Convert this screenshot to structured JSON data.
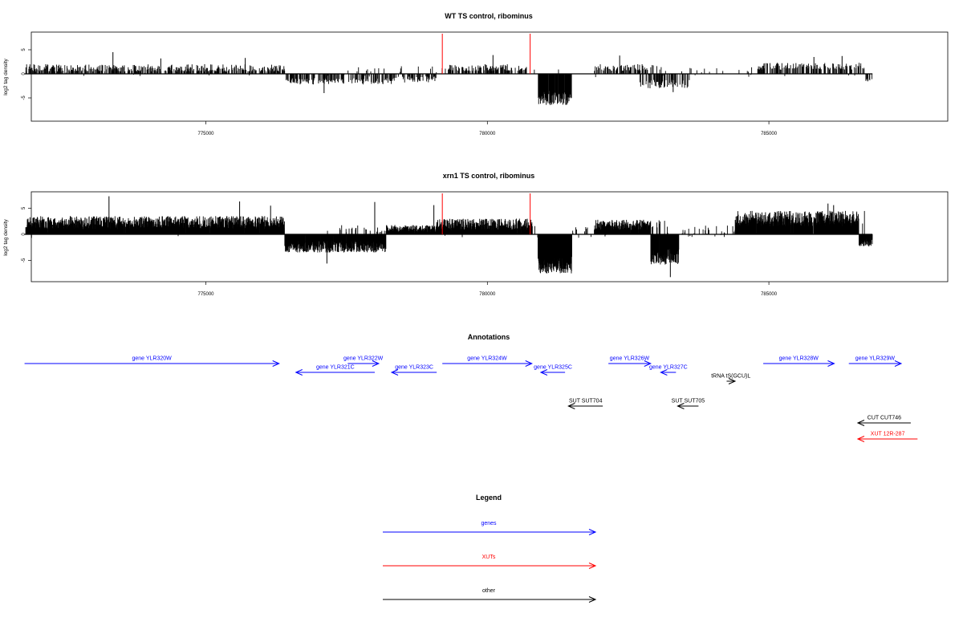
{
  "panels": [
    {
      "id": "wt",
      "title": "WT TS control, ribominus",
      "ylabel": "log2 tag density",
      "yticks": [
        {
          "value": 5,
          "label": "5"
        },
        {
          "value": 0,
          "label": "0"
        },
        {
          "value": -5,
          "label": "-5"
        }
      ],
      "xticks": [
        {
          "value": 775000,
          "label": "775000"
        },
        {
          "value": 780000,
          "label": "780000"
        },
        {
          "value": 785000,
          "label": "785000"
        }
      ],
      "red_markers": [
        779200,
        780760
      ]
    },
    {
      "id": "xrn1",
      "title": "xrn1 TS control, ribominus",
      "ylabel": "log2 tag density",
      "yticks": [
        {
          "value": 5,
          "label": "5"
        },
        {
          "value": 0,
          "label": "0"
        },
        {
          "value": -5,
          "label": "-5"
        }
      ],
      "xticks": [
        {
          "value": 775000,
          "label": "775000"
        },
        {
          "value": 780000,
          "label": "780000"
        },
        {
          "value": 785000,
          "label": "785000"
        }
      ],
      "red_markers": [
        779200,
        780760
      ]
    }
  ],
  "annotations": {
    "title": "Annotations",
    "features": [
      {
        "label": "gene YLR320W",
        "type": "gene",
        "strand": "+",
        "start": 771780,
        "end": 776300,
        "row": 0
      },
      {
        "label": "gene YLR321C",
        "type": "gene",
        "strand": "-",
        "start": 776600,
        "end": 778000,
        "row": 1
      },
      {
        "label": "gene YLR322W",
        "type": "gene",
        "strand": "+",
        "start": 777520,
        "end": 778070,
        "row": 0
      },
      {
        "label": "gene YLR323C",
        "type": "gene",
        "strand": "-",
        "start": 778300,
        "end": 779100,
        "row": 1
      },
      {
        "label": "gene YLR324W",
        "type": "gene",
        "strand": "+",
        "start": 779200,
        "end": 780790,
        "row": 0
      },
      {
        "label": "gene YLR325C",
        "type": "gene",
        "strand": "-",
        "start": 780950,
        "end": 781380,
        "row": 1
      },
      {
        "label": "gene YLR326W",
        "type": "gene",
        "strand": "+",
        "start": 782150,
        "end": 782900,
        "row": 0
      },
      {
        "label": "gene YLR327C",
        "type": "gene",
        "strand": "-",
        "start": 783080,
        "end": 783350,
        "row": 1
      },
      {
        "label": "tRNA tS(GCU)L",
        "type": "other",
        "strand": "+",
        "start": 784250,
        "end": 784400,
        "row": 2
      },
      {
        "label": "gene YLR328W",
        "type": "gene",
        "strand": "+",
        "start": 784900,
        "end": 786160,
        "row": 0
      },
      {
        "label": "gene YLR329W",
        "type": "gene",
        "strand": "+",
        "start": 786420,
        "end": 787350,
        "row": 0
      },
      {
        "label": "SUT SUT704",
        "type": "other",
        "strand": "-",
        "start": 781440,
        "end": 782050,
        "row": 4
      },
      {
        "label": "SUT SUT705",
        "type": "other",
        "strand": "-",
        "start": 783380,
        "end": 783750,
        "row": 4
      },
      {
        "label": "CUT CUT746",
        "type": "other",
        "strand": "-",
        "start": 786580,
        "end": 787520,
        "row": 6
      },
      {
        "label": "XUT 12R-287",
        "type": "xut",
        "strand": "-",
        "start": 786580,
        "end": 787640,
        "row": 7
      }
    ]
  },
  "legend": {
    "title": "Legend",
    "items": [
      {
        "label": "genes",
        "color": "#0000ff"
      },
      {
        "label": "XUTs",
        "color": "#ff0000"
      },
      {
        "label": "other",
        "color": "#000000"
      }
    ]
  },
  "colors": {
    "gene": "#0000ff",
    "xut": "#ff0000",
    "other": "#000000",
    "marker": "#ff0000",
    "bars": "#000000"
  }
}
